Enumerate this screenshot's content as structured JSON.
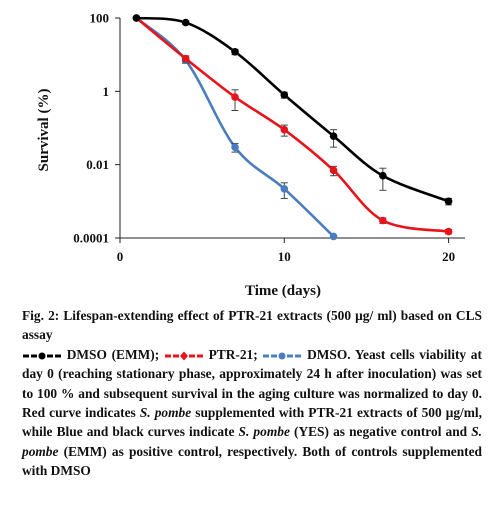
{
  "chart_data": {
    "type": "line",
    "y_scale": "log",
    "ylabel": "Survival (%)",
    "xlabel": "Time (days)",
    "xlim": [
      0,
      21
    ],
    "ylim": [
      0.0001,
      100
    ],
    "x_ticks": [
      0,
      10,
      20
    ],
    "x_tick_labels": [
      "0",
      "10",
      "20"
    ],
    "y_ticks": [
      0.0001,
      0.01,
      1,
      100
    ],
    "y_tick_labels": [
      "0.0001",
      "0.01",
      "1",
      "100"
    ],
    "grid": false,
    "series": [
      {
        "name": "DMSO (EMM)",
        "color": "#000000",
        "x": [
          1,
          4,
          7,
          10,
          13,
          16,
          20
        ],
        "y": [
          100,
          75,
          12,
          0.8,
          0.06,
          0.005,
          0.001
        ],
        "err": [
          0,
          8,
          2,
          0.15,
          0.03,
          0.003,
          0.0002
        ]
      },
      {
        "name": "PTR-21",
        "color": "#e8141b",
        "x": [
          1,
          4,
          7,
          10,
          13,
          16,
          20
        ],
        "y": [
          100,
          7.8,
          0.7,
          0.09,
          0.007,
          0.0003,
          0.00015
        ],
        "err": [
          0,
          1.5,
          0.4,
          0.03,
          0.002,
          5e-05,
          2e-05
        ]
      },
      {
        "name": "DMSO",
        "color": "#4a7dbf",
        "x": [
          1,
          4,
          7,
          10,
          13
        ],
        "y": [
          100,
          7,
          0.03,
          0.0022,
          0.00011
        ],
        "err": [
          0,
          1.2,
          0.008,
          0.001,
          0
        ]
      }
    ]
  },
  "caption": {
    "fig_title": "Fig. 2: Lifespan-extending effect of PTR-21 extracts (500 μg/ ml) based on CLS assay",
    "legend_dmso_emm": "DMSO (EMM);",
    "legend_ptr21": "PTR-21;",
    "legend_dmso_yes": "DMSO.",
    "text_1": "Yeast cells viability at day 0 (reaching stationary phase, approximately 24 h after inoculation) was set to 100 % and subsequent survival in the aging culture was normalized to day 0. Red curve indicates",
    "species_1": "S. pombe",
    "text_2": "supplemented with PTR-21 extracts of 500 μg/ml, while Blue and black curves indicate",
    "species_2": "S. pombe",
    "text_3": "(YES) as negative control and",
    "species_3": "S. pombe",
    "text_4": "(EMM) as positive control, respectively. Both of controls supplemented with DMSO"
  }
}
